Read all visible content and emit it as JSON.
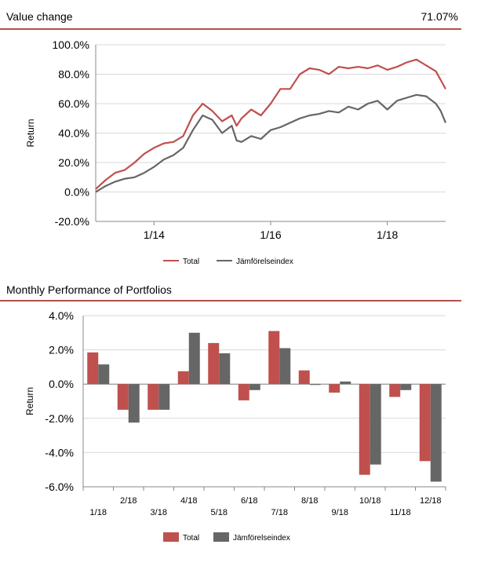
{
  "header1": {
    "title": "Value change",
    "value": "71.07%"
  },
  "header2": {
    "title": "Monthly Performance of Portfolios",
    "value": ""
  },
  "chart_data": [
    {
      "type": "line",
      "title": "Value change",
      "ylabel": "Return",
      "xlabel": "",
      "ylim": [
        -20,
        100
      ],
      "yticks": [
        -20,
        0,
        20,
        40,
        60,
        80,
        100
      ],
      "ytick_labels": [
        "-20.0%",
        "0.0%",
        "20.0%",
        "40.0%",
        "60.0%",
        "80.0%",
        "100.0%"
      ],
      "xlim": [
        0,
        72
      ],
      "xticks": [
        12,
        36,
        60
      ],
      "xtick_labels": [
        "1/14",
        "1/16",
        "1/18"
      ],
      "grid": true,
      "legend": "bottom",
      "series": [
        {
          "name": "Total",
          "color": "#c0504d",
          "x": [
            0,
            2,
            4,
            6,
            8,
            10,
            12,
            14,
            16,
            18,
            20,
            22,
            24,
            26,
            28,
            29,
            30,
            32,
            34,
            36,
            38,
            40,
            42,
            44,
            46,
            48,
            50,
            52,
            54,
            56,
            58,
            60,
            62,
            64,
            66,
            68,
            70,
            71,
            72
          ],
          "y": [
            2,
            8,
            13,
            15,
            20,
            26,
            30,
            33,
            34,
            38,
            52,
            60,
            55,
            48,
            52,
            45,
            50,
            56,
            52,
            60,
            70,
            70,
            80,
            84,
            83,
            80,
            85,
            84,
            85,
            84,
            86,
            83,
            85,
            88,
            90,
            86,
            82,
            76,
            70
          ]
        },
        {
          "name": "Jämförelseindex",
          "color": "#666666",
          "x": [
            0,
            2,
            4,
            6,
            8,
            10,
            12,
            14,
            16,
            18,
            20,
            22,
            24,
            26,
            28,
            29,
            30,
            32,
            34,
            36,
            38,
            40,
            42,
            44,
            46,
            48,
            50,
            52,
            54,
            56,
            58,
            60,
            62,
            64,
            66,
            68,
            70,
            71,
            72
          ],
          "y": [
            0,
            4,
            7,
            9,
            10,
            13,
            17,
            22,
            25,
            30,
            42,
            52,
            49,
            40,
            45,
            35,
            34,
            38,
            36,
            42,
            44,
            47,
            50,
            52,
            53,
            55,
            54,
            58,
            56,
            60,
            62,
            56,
            62,
            64,
            66,
            65,
            60,
            55,
            47
          ]
        }
      ]
    },
    {
      "type": "bar",
      "title": "Monthly Performance of Portfolios",
      "ylabel": "Return",
      "xlabel": "",
      "ylim": [
        -6,
        4
      ],
      "yticks": [
        -6,
        -4,
        -2,
        0,
        2,
        4
      ],
      "ytick_labels": [
        "-6.0%",
        "-4.0%",
        "-2.0%",
        "0.0%",
        "2.0%",
        "4.0%"
      ],
      "categories": [
        "1/18",
        "2/18",
        "3/18",
        "4/18",
        "5/18",
        "6/18",
        "7/18",
        "8/18",
        "9/18",
        "10/18",
        "11/18",
        "12/18"
      ],
      "grid": true,
      "legend": "bottom",
      "series": [
        {
          "name": "Total",
          "color": "#c0504d",
          "values": [
            1.85,
            -1.5,
            -1.5,
            0.75,
            2.4,
            -0.95,
            3.1,
            0.8,
            -0.5,
            -5.3,
            -0.75,
            -4.5
          ]
        },
        {
          "name": "Jämförelseindex",
          "color": "#666666",
          "values": [
            1.15,
            -2.25,
            -1.5,
            3.0,
            1.8,
            -0.35,
            2.1,
            -0.05,
            0.15,
            -4.7,
            -0.35,
            -5.7
          ]
        }
      ]
    }
  ]
}
